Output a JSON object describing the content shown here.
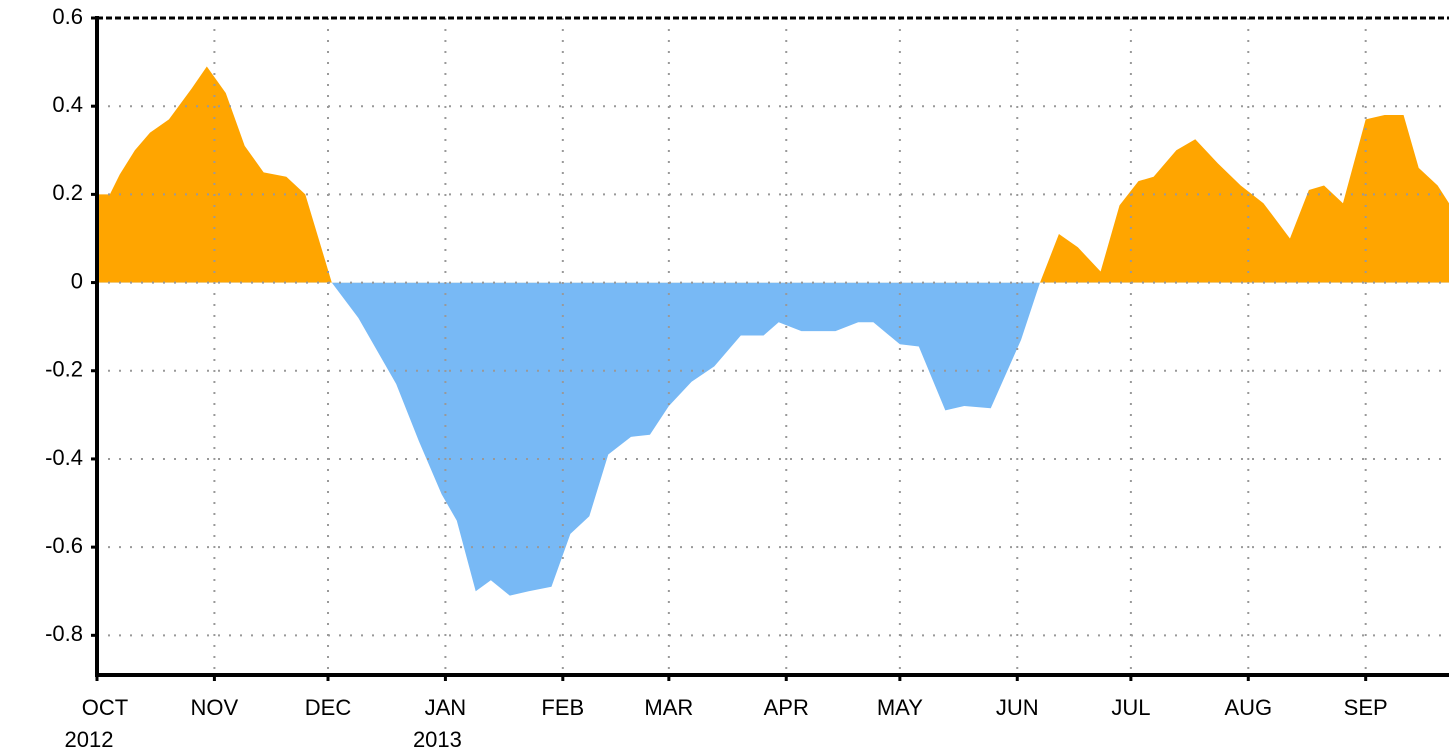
{
  "chart_data": {
    "type": "area",
    "positive_color": "#ffa500",
    "negative_color": "#78b9f5",
    "grid": true,
    "xlim": [
      0,
      357
    ],
    "ylim": [
      -0.89,
      0.6
    ],
    "yticks": [
      0.6,
      0.4,
      0.2,
      0,
      -0.2,
      -0.4,
      -0.6,
      -0.8
    ],
    "xticks": [
      {
        "value": 0,
        "label": "OCT"
      },
      {
        "value": 31,
        "label": "NOV"
      },
      {
        "value": 61,
        "label": "DEC"
      },
      {
        "value": 92,
        "label": "JAN"
      },
      {
        "value": 123,
        "label": "FEB"
      },
      {
        "value": 151,
        "label": "MAR"
      },
      {
        "value": 182,
        "label": "APR"
      },
      {
        "value": 212,
        "label": "MAY"
      },
      {
        "value": 243,
        "label": "JUN"
      },
      {
        "value": 273,
        "label": "JUL"
      },
      {
        "value": 304,
        "label": "AUG"
      },
      {
        "value": 335,
        "label": "SEP"
      }
    ],
    "year_labels": [
      {
        "value": 0,
        "label": "2012"
      },
      {
        "value": 92,
        "label": "2013"
      }
    ],
    "x": [
      0,
      3.4,
      6,
      10,
      14,
      19,
      25,
      29,
      34,
      39,
      44,
      50,
      55,
      62,
      69,
      79,
      85,
      91,
      95,
      100,
      104,
      109,
      114,
      120,
      125,
      130,
      135,
      141,
      146,
      151,
      157,
      163,
      170,
      176,
      180,
      186,
      195,
      201,
      205,
      212,
      217,
      224,
      229,
      236,
      244,
      249,
      254,
      259,
      265,
      270,
      275,
      279,
      285,
      290,
      296,
      302,
      308,
      315,
      320,
      324,
      329,
      335,
      340,
      345,
      349,
      354,
      357
    ],
    "values": [
      0.2,
      0.2,
      0.245,
      0.3,
      0.34,
      0.37,
      0.44,
      0.49,
      0.43,
      0.31,
      0.25,
      0.24,
      0.2,
      0,
      -0.08,
      -0.23,
      -0.36,
      -0.48,
      -0.54,
      -0.7,
      -0.675,
      -0.71,
      -0.7,
      -0.69,
      -0.57,
      -0.53,
      -0.39,
      -0.35,
      -0.345,
      -0.28,
      -0.225,
      -0.19,
      -0.12,
      -0.12,
      -0.09,
      -0.11,
      -0.11,
      -0.09,
      -0.09,
      -0.14,
      -0.145,
      -0.29,
      -0.28,
      -0.285,
      -0.13,
      0,
      0.11,
      0.08,
      0.025,
      0.175,
      0.23,
      0.24,
      0.3,
      0.325,
      0.27,
      0.22,
      0.18,
      0.1,
      0.21,
      0.22,
      0.18,
      0.37,
      0.38,
      0.38,
      0.26,
      0.22,
      0.18
    ]
  }
}
